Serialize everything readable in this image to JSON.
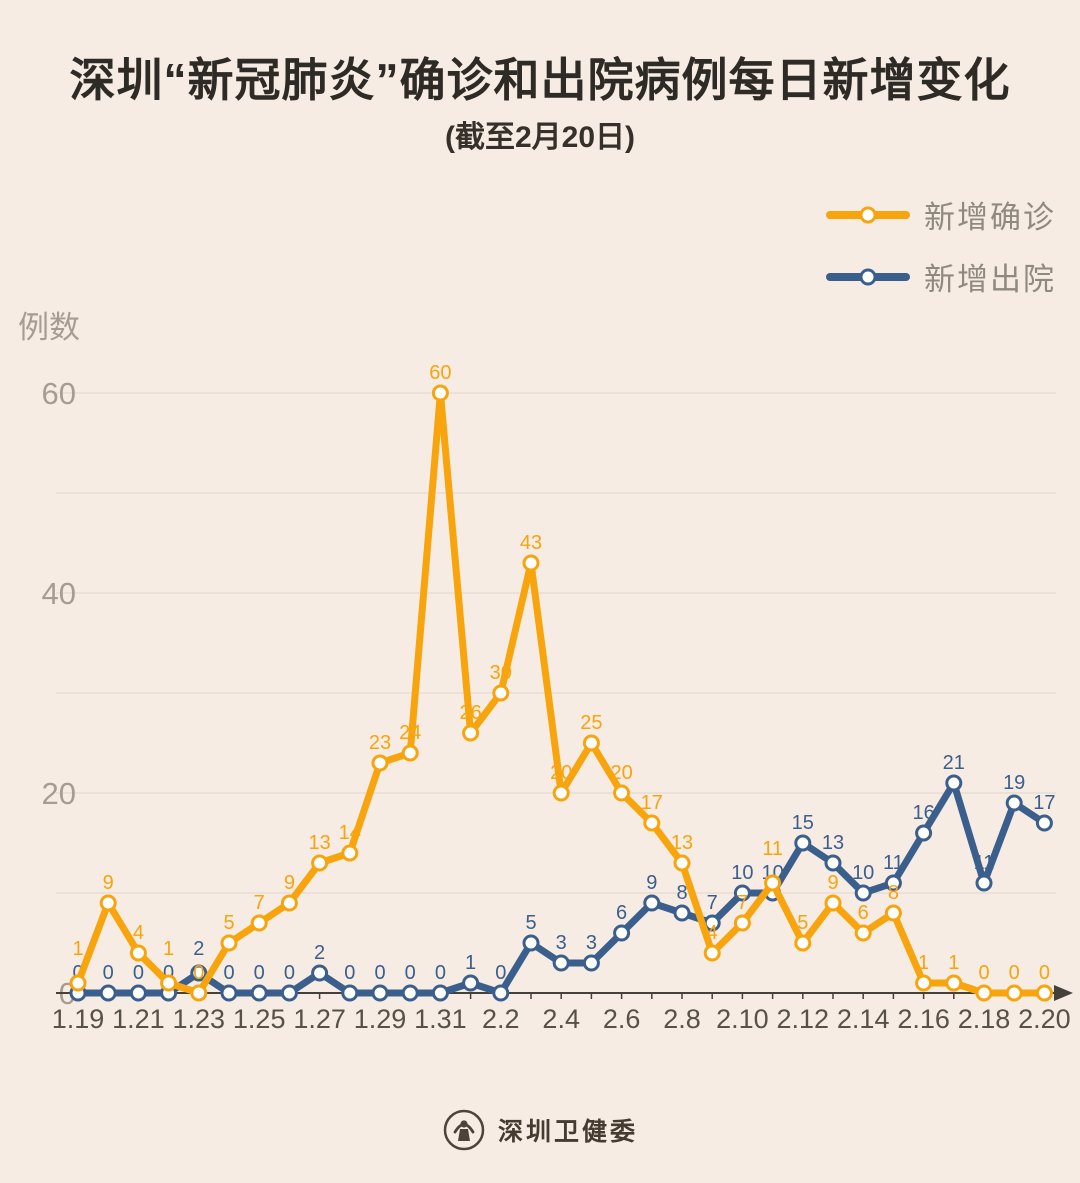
{
  "title": "深圳“新冠肺炎”确诊和出院病例每日新增变化",
  "subtitle": "(截至2月20日)",
  "legend": [
    {
      "label": "新增确诊",
      "color": "#f8a40d"
    },
    {
      "label": "新增出院",
      "color": "#3b5f8d"
    }
  ],
  "footer": {
    "org": "深圳卫健委",
    "logo": "emblem-icon"
  },
  "colors": {
    "background": "#f6ece4",
    "confirmed": "#f8a40d",
    "discharged": "#3b5f8d",
    "grid": "#e9ddd4",
    "axis": "#45403a",
    "y_tick_text": "#a79c91",
    "x_tick_text": "#57514a",
    "title_text": "#2e2a26",
    "legend_text": "#8f8a81",
    "marker_fill": "#ffffff"
  },
  "chart_data": {
    "type": "line",
    "title": "深圳“新冠肺炎”确诊和出院病例每日新增变化",
    "subtitle": "(截至2月20日)",
    "ylabel": "例数",
    "xlabel": "",
    "ylim": [
      0,
      60
    ],
    "yticks": [
      0,
      20,
      40,
      60
    ],
    "grid": true,
    "grid_step": 10,
    "legend_position": "top-right",
    "x_label_every": 2,
    "x": [
      "1.19",
      "1.20",
      "1.21",
      "1.22",
      "1.23",
      "1.24",
      "1.25",
      "1.26",
      "1.27",
      "1.28",
      "1.29",
      "1.30",
      "1.31",
      "2.1",
      "2.2",
      "2.3",
      "2.4",
      "2.5",
      "2.6",
      "2.7",
      "2.8",
      "2.9",
      "2.10",
      "2.11",
      "2.12",
      "2.13",
      "2.14",
      "2.15",
      "2.16",
      "2.17",
      "2.18",
      "2.19",
      "2.20"
    ],
    "series": [
      {
        "id": "confirmed",
        "name": "新增确诊",
        "color": "#f8a40d",
        "values": [
          1,
          9,
          4,
          1,
          0,
          5,
          7,
          9,
          13,
          14,
          23,
          24,
          60,
          26,
          30,
          43,
          20,
          25,
          20,
          17,
          13,
          4,
          7,
          11,
          5,
          9,
          6,
          8,
          1,
          1,
          0,
          0,
          0
        ]
      },
      {
        "id": "discharged",
        "name": "新增出院",
        "color": "#3b5f8d",
        "values": [
          0,
          0,
          0,
          0,
          2,
          0,
          0,
          0,
          2,
          0,
          0,
          0,
          0,
          1,
          0,
          5,
          3,
          3,
          6,
          9,
          8,
          7,
          10,
          10,
          15,
          13,
          10,
          11,
          16,
          21,
          11,
          19,
          17
        ]
      }
    ]
  }
}
